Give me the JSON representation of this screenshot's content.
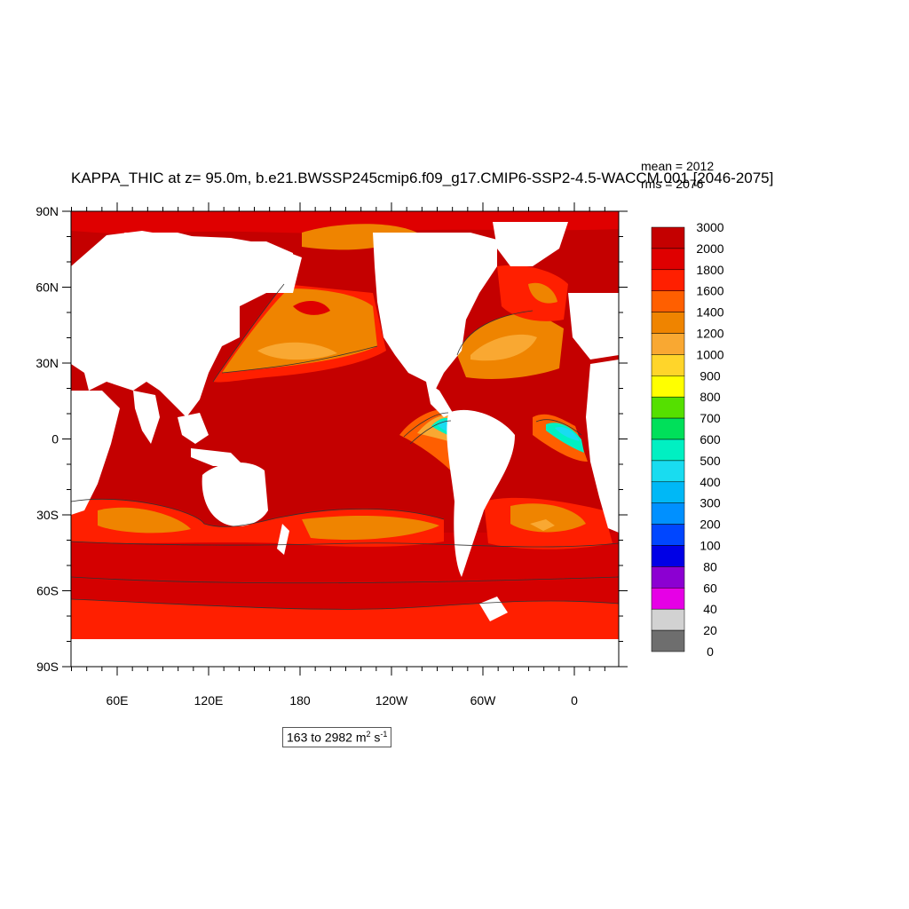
{
  "title": "KAPPA_THIC at z=  95.0m, b.e21.BWSSP245cmip6.f09_g17.CMIP6-SSP2-4.5-WACCM.001 [2046-2075]",
  "stats": {
    "mean": "mean = 2012",
    "rms": "rms = 2076"
  },
  "axes": {
    "lat_labels": [
      "90N",
      "60N",
      "30N",
      "0",
      "30S",
      "60S",
      "90S"
    ],
    "lon_labels": [
      "60E",
      "120E",
      "180",
      "120W",
      "60W",
      "0"
    ]
  },
  "colorbar": {
    "levels": [
      "3000",
      "2000",
      "1800",
      "1600",
      "1400",
      "1200",
      "1000",
      "900",
      "800",
      "700",
      "600",
      "500",
      "400",
      "300",
      "200",
      "100",
      "80",
      "60",
      "40",
      "20",
      "0"
    ],
    "colors": [
      "#c40000",
      "#df0000",
      "#ff1f00",
      "#ff5f00",
      "#ef8400",
      "#f9a832",
      "#ffd52a",
      "#ffff00",
      "#55e000",
      "#00e05a",
      "#00f0c2",
      "#19dcf0",
      "#00b8f6",
      "#0090ff",
      "#0046ff",
      "#0000e6",
      "#8c00d2",
      "#e600e6",
      "#d2d2d2",
      "#6e6e6e"
    ]
  },
  "range": {
    "text": "163 to 2982 m",
    "exp1": "2",
    "unit": " s",
    "exp2": "-1"
  },
  "colors": {
    "ocean_base": "#c40000",
    "land": "#ffffff"
  }
}
